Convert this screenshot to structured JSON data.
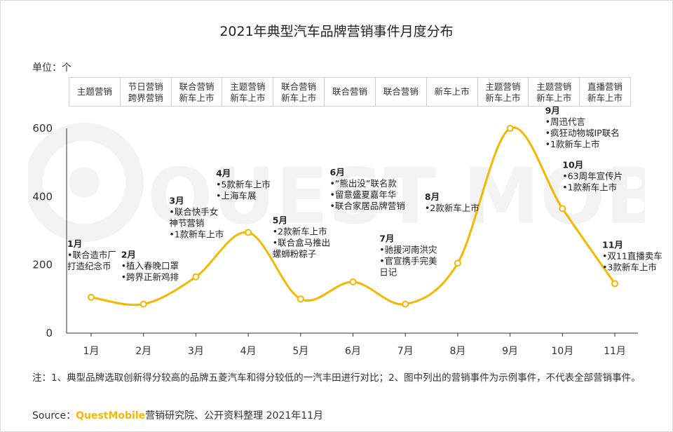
{
  "title": "2021年典型汽车品牌营销事件月度分布",
  "unit_label": "单位：个",
  "category_row": [
    [
      "主题营销"
    ],
    [
      "节日营销",
      "跨界营销"
    ],
    [
      "联合营销",
      "新车上市"
    ],
    [
      "主题营销",
      "新车上市"
    ],
    [
      "联合营销",
      "新车上市"
    ],
    [
      "联合营销"
    ],
    [
      "联合营销"
    ],
    [
      "新车上市"
    ],
    [
      "主题营销",
      "新车上市"
    ],
    [
      "主题营销",
      "新车上市"
    ],
    [
      "直播营销",
      "新车上市"
    ]
  ],
  "chart_data": {
    "type": "line",
    "categories": [
      "1月",
      "2月",
      "3月",
      "4月",
      "5月",
      "6月",
      "7月",
      "8月",
      "9月",
      "10月",
      "11月"
    ],
    "values": [
      105,
      85,
      165,
      295,
      100,
      150,
      85,
      205,
      600,
      365,
      145
    ],
    "ylim": [
      0,
      600
    ],
    "yticks": [
      "0",
      "200",
      "400",
      "600"
    ],
    "series_color": "#f5b800",
    "annotations": [
      {
        "month": "1月",
        "lines": [
          "•联合造市厂",
          "打造纪念币"
        ]
      },
      {
        "month": "2月",
        "lines": [
          "•植入春晚口罩",
          "•跨界正新鸡排"
        ]
      },
      {
        "month": "3月",
        "lines": [
          "•联合快手女",
          "神节营销",
          "•1款新车上市"
        ]
      },
      {
        "month": "4月",
        "lines": [
          "•5款新车上市",
          "•上海车展"
        ]
      },
      {
        "month": "5月",
        "lines": [
          "•2款新车上市",
          "•联合盒马推出",
          "螺蛳粉粽子"
        ]
      },
      {
        "month": "6月",
        "lines": [
          "•“熊出没”联名款",
          "•留意盛夏嘉年华",
          "•联合家居品牌营销"
        ]
      },
      {
        "month": "7月",
        "lines": [
          "•驰援河南洪灾",
          "•官宣携手完美",
          "日记"
        ]
      },
      {
        "month": "8月",
        "lines": [
          "•2款新车上市"
        ]
      },
      {
        "month": "9月",
        "lines": [
          "•周迅代言",
          "•疯狂动物城IP联名",
          "•1款新车上市"
        ]
      },
      {
        "month": "10月",
        "lines": [
          "•63周年宣传片",
          "•1款新车上市"
        ]
      },
      {
        "month": "11月",
        "lines": [
          "•双11直播卖车",
          "•3款新车上市"
        ]
      }
    ]
  },
  "note": "注：1、典型品牌选取创新得分较高的品牌五菱汽车和得分较低的一汽丰田进行对比；2、图中列出的营销事件为示例事件，不代表全部营销事件。",
  "source": {
    "prefix": "Source：",
    "brand": "QuestMobile",
    "suffix": "营销研究院、公开资料整理 2021年11月"
  },
  "watermark": "QUEST MOBILE"
}
